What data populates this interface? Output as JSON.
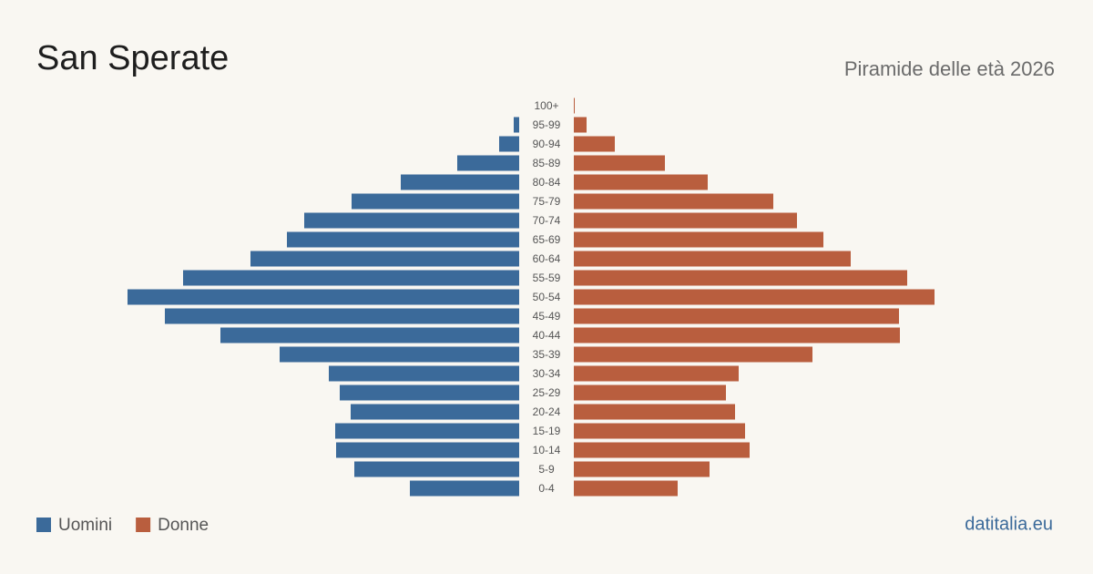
{
  "chart_data": {
    "type": "pyramid",
    "title": "San Sperate",
    "subtitle": "Piramide delle età 2026",
    "source": "datitalia.eu",
    "categories": [
      "100+",
      "95-99",
      "90-94",
      "85-89",
      "80-84",
      "75-79",
      "70-74",
      "65-69",
      "60-64",
      "55-59",
      "50-54",
      "45-49",
      "40-44",
      "35-39",
      "30-34",
      "25-29",
      "20-24",
      "15-19",
      "10-14",
      "5-9",
      "0-4"
    ],
    "series": [
      {
        "name": "Uomini",
        "color": "#3b6a9a",
        "values": [
          0,
          6,
          22,
          68,
          130,
          184,
          236,
          255,
          295,
          369,
          430,
          389,
          328,
          263,
          209,
          197,
          185,
          202,
          201,
          181,
          120
        ]
      },
      {
        "name": "Donne",
        "color": "#b95e3e",
        "values": [
          1,
          14,
          45,
          100,
          147,
          219,
          245,
          274,
          304,
          366,
          396,
          357,
          358,
          262,
          181,
          167,
          177,
          188,
          193,
          149,
          114
        ]
      }
    ]
  }
}
